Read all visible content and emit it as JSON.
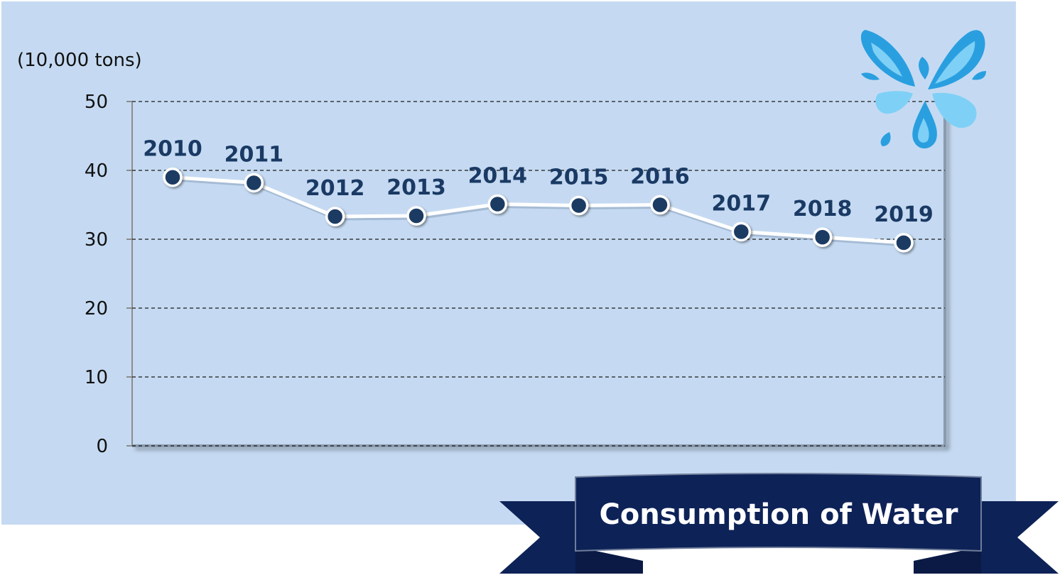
{
  "chart_data": {
    "type": "line",
    "title": "Consumption of Water",
    "ylabel": "(10,000 tons)",
    "xlabel": "",
    "ylim": [
      0,
      50
    ],
    "yticks": [
      0,
      10,
      20,
      30,
      40,
      50
    ],
    "grid": true,
    "legend": "none",
    "categories": [
      "2010",
      "2011",
      "2012",
      "2013",
      "2014",
      "2015",
      "2016",
      "2017",
      "2018",
      "2019"
    ],
    "series": [
      {
        "values": [
          39.0,
          38.2,
          33.3,
          33.4,
          35.1,
          34.9,
          35.0,
          31.1,
          30.3,
          29.5
        ]
      }
    ],
    "colors": {
      "panel": "#c5daf2",
      "marker": "#1a3a64",
      "line": "#ffffff",
      "data_label": "#1a3a64",
      "ribbon": "#0d2257",
      "ribbon_text": "#ffffff",
      "drop_dark": "#2a9fe0",
      "drop_light": "#7fd0f6"
    },
    "icons": {
      "decoration": "water-splash-icon"
    }
  }
}
